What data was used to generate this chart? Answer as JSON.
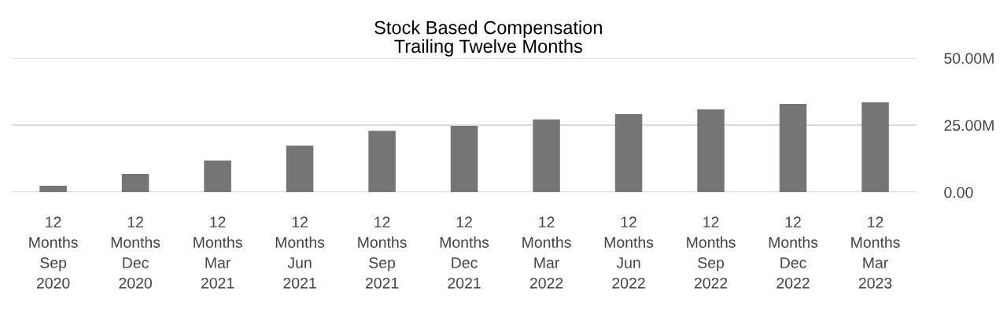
{
  "chart_data": {
    "type": "bar",
    "title": "Stock Based Compensation\nTrailing Twelve Months",
    "categories": [
      "12\nMonths\nSep\n2020",
      "12\nMonths\nDec\n2020",
      "12\nMonths\nMar\n2021",
      "12\nMonths\nJun\n2021",
      "12\nMonths\nSep\n2021",
      "12\nMonths\nDec\n2021",
      "12\nMonths\nMar\n2022",
      "12\nMonths\nJun\n2022",
      "12\nMonths\nSep\n2022",
      "12\nMonths\nDec\n2022",
      "12\nMonths\nMar\n2023"
    ],
    "values": [
      2.4,
      6.8,
      11.8,
      17.4,
      22.9,
      24.7,
      27.1,
      29.1,
      30.9,
      32.9,
      33.5
    ],
    "color": "#757575",
    "ylim": [
      0,
      50
    ],
    "yticks": [
      {
        "value": 0,
        "label": "0.00"
      },
      {
        "value": 25,
        "label": "25.00M"
      },
      {
        "value": 50,
        "label": "50.00M"
      }
    ],
    "grid": "y"
  }
}
